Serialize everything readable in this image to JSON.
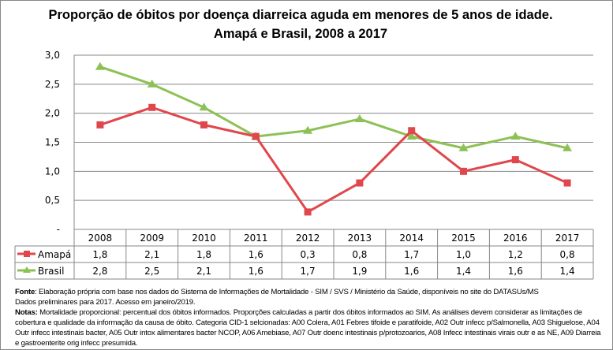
{
  "chart_data": {
    "type": "line",
    "title": "Proporção de óbitos por doença diarreica aguda em menores de 5 anos de idade. Amapá  e Brasil, 2008 a 2017",
    "categories": [
      "2008",
      "2009",
      "2010",
      "2011",
      "2012",
      "2013",
      "2014",
      "2015",
      "2016",
      "2017"
    ],
    "yticks": [
      "-",
      "0,5",
      "1,0",
      "1,5",
      "2,0",
      "2,5",
      "3,0"
    ],
    "ylim": [
      0,
      3
    ],
    "grid": true,
    "data_table": true,
    "series": [
      {
        "name": "Amapá",
        "color": "#E0474C",
        "marker": "square",
        "values": [
          1.8,
          2.1,
          1.8,
          1.6,
          0.3,
          0.8,
          1.7,
          1.0,
          1.2,
          0.8
        ],
        "labels": [
          "1,8",
          "2,1",
          "1,8",
          "1,6",
          "0,3",
          "0,8",
          "1,7",
          "1,0",
          "1,2",
          "0,8"
        ]
      },
      {
        "name": "Brasil",
        "color": "#8DC156",
        "marker": "triangle",
        "values": [
          2.8,
          2.5,
          2.1,
          1.6,
          1.7,
          1.9,
          1.6,
          1.4,
          1.6,
          1.4
        ],
        "labels": [
          "2,8",
          "2,5",
          "2,1",
          "1,6",
          "1,7",
          "1,9",
          "1,6",
          "1,4",
          "1,6",
          "1,4"
        ]
      }
    ]
  },
  "notes": {
    "fonte_label": "Fonte",
    "fonte_text": ": Elaboração própria  com base nos dados do Sistema de Informações de Mortalidade - SIM / SVS / Ministério  da Saúde,  disponíveis no site do DATASUs/MS",
    "fonte_line2": "Dados preliminares para 2017. Acesso em janeiro/2019.",
    "notas_label": "Notas:",
    "notas_text": "  Mortalidade proporcional: percentual dos óbitos informados.  Proporções calculadas a partir dos óbitos informados ao SIM. As análises devem considerar as limitações de cobertura e qualidade da informação da causa de óbito. Categoria CID-1 selcionadas: A00   Colera, A01   Febres tifoide e paratifoide, A02  Outr infecc p/Salmonella, A03  Shiguelose, A04 Outr infecc intestinais bacter, A05  Outr intox alimentares bacter NCOP, A06  Amebiase, A07  Outr doenc intestinais p/protozoarios, A08   Infecc intestinais virais outr e as NE, A09   Diarreia e gastroenterite orig infecc presumida."
  }
}
